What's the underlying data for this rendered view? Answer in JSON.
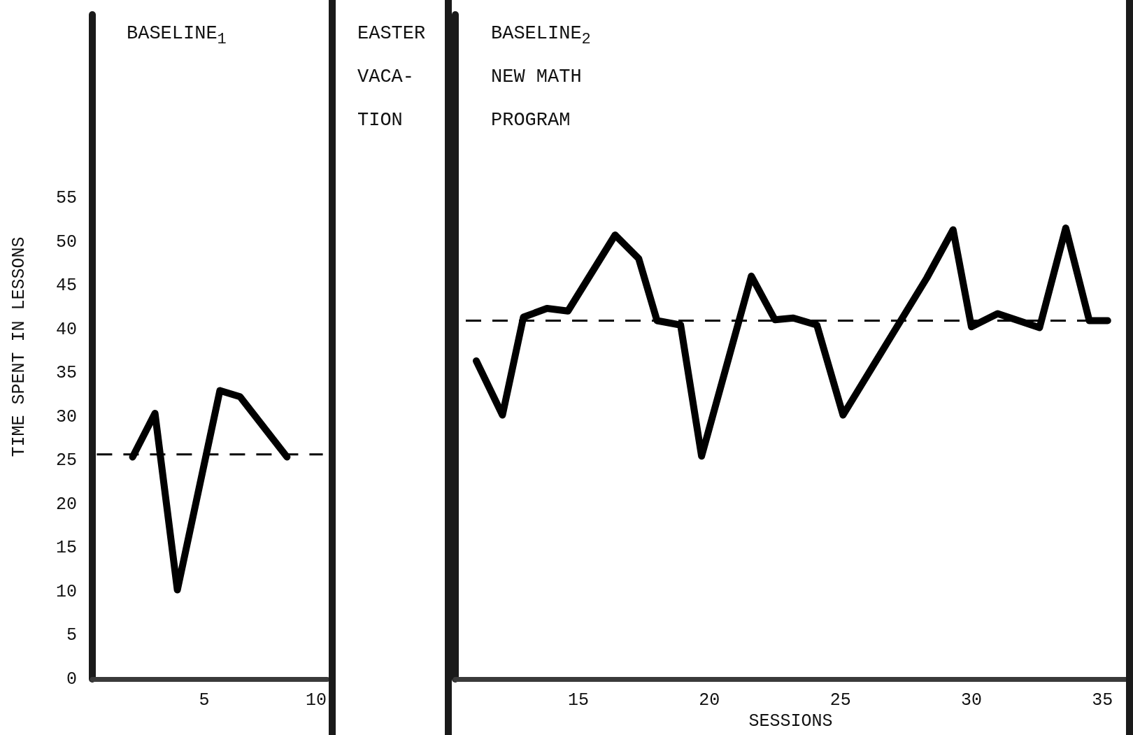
{
  "chart_data": [
    {
      "type": "line",
      "title": "BASELINE$_{1}$",
      "ylabel": "TIME SPENT IN LESSONS",
      "xlim": [
        0,
        10.5
      ],
      "xticks": [
        5,
        10
      ],
      "ylim": [
        0,
        76
      ],
      "yticks": [
        0,
        5,
        10,
        15,
        20,
        25,
        30,
        35,
        40,
        45,
        50,
        55
      ],
      "grid": false,
      "marker": "none",
      "x": [
        1.8,
        2.8,
        3.8,
        5.7,
        6.6,
        8.7
      ],
      "series": [
        {
          "color": "#000000",
          "values": [
            25.4,
            30.4,
            10.2,
            33.0,
            32.3,
            25.4
          ]
        },
        {
          "type": "line",
          "color": "#000000",
          "line_style": "dashed",
          "x": [
            0.2,
            10.3
          ],
          "values": [
            25.7,
            25.7
          ]
        }
      ]
    },
    {
      "type": "other",
      "title": "EASTER\nVACA-\nTION"
    },
    {
      "type": "line",
      "title": "BASELINE$_{2}$",
      "subtitle": "NEW MATH\nPROGRAM",
      "xlabel": "SESSIONS",
      "xlim": [
        10.3,
        35.9
      ],
      "xticks": [
        15,
        20,
        25,
        30,
        35
      ],
      "ylim": [
        0,
        76
      ],
      "yticks": [
        0,
        5,
        10,
        15,
        20,
        25,
        30,
        35,
        40,
        45,
        50,
        55
      ],
      "tick_labels": "x",
      "grid": false,
      "marker": "none",
      "x": [
        11.1,
        12.1,
        12.9,
        13.8,
        14.6,
        16.4,
        17.3,
        18.0,
        18.9,
        19.7,
        21.6,
        22.5,
        23.2,
        24.1,
        25.1,
        28.3,
        29.3,
        30.0,
        31.0,
        32.6,
        33.6,
        34.5,
        35.2
      ],
      "series": [
        {
          "color": "#000000",
          "values": [
            36.4,
            30.2,
            41.4,
            42.4,
            42.1,
            50.8,
            48.1,
            41.0,
            40.5,
            25.5,
            46.1,
            41.1,
            41.3,
            40.5,
            30.2,
            45.9,
            51.4,
            40.3,
            41.8,
            40.2,
            51.6,
            41.0,
            41.0
          ]
        },
        {
          "type": "line",
          "color": "#000000",
          "line_style": "dashed",
          "x": [
            10.7,
            35.2
          ],
          "values": [
            41.0,
            41.0
          ]
        }
      ]
    }
  ]
}
